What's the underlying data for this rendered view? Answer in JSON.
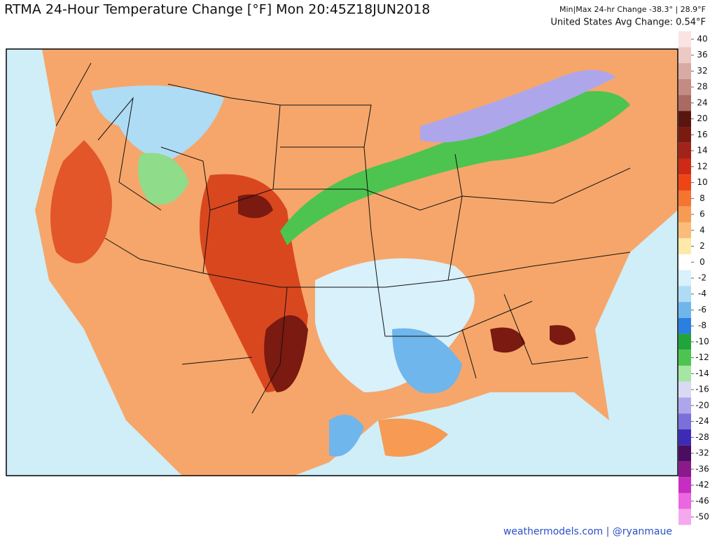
{
  "header": {
    "title": "RTMA 24-Hour Temperature Change [°F]  Mon 20:45Z18JUN2018",
    "minmax": "Min|Max 24-hr Change -38.3° | 28.9°F",
    "average": "United States Avg Change: 0.54°F"
  },
  "colorbar": {
    "ticks": [
      40,
      36,
      32,
      28,
      24,
      20,
      16,
      14,
      12,
      10,
      8,
      6,
      4,
      2,
      0,
      -2,
      -4,
      -6,
      -8,
      -10,
      -12,
      -14,
      -16,
      -20,
      -24,
      -28,
      -32,
      -36,
      -42,
      -46,
      -50
    ],
    "colors": [
      "#fbe3e3",
      "#ecc9c3",
      "#d8aaa3",
      "#c48b83",
      "#a96a62",
      "#5a1510",
      "#7a1a10",
      "#a3231a",
      "#cf2a16",
      "#ee4416",
      "#f5742e",
      "#f79a54",
      "#f9bd79",
      "#fde9a8",
      "#ffffff",
      "#d8f1fb",
      "#aedcf5",
      "#6fb6ec",
      "#2a7fe0",
      "#1fa53a",
      "#4dc44f",
      "#a5e6a2",
      "#d9d9f3",
      "#aea6ea",
      "#7b6fda",
      "#3d2bb8",
      "#4a0d62",
      "#8a1a8c",
      "#c62dc3",
      "#ea67e1",
      "#f6a8ef"
    ]
  },
  "footer": {
    "credit": "weathermodels.com | @ryanmaue"
  }
}
